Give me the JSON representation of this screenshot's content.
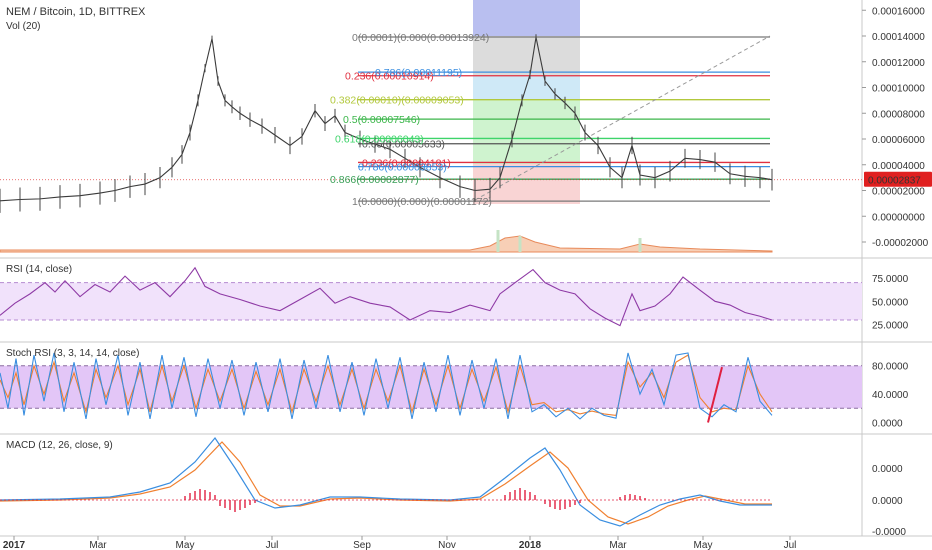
{
  "chart_data": {
    "type": "line",
    "title": "NEM / Bitcoin, 1D, BITTREX",
    "volume_label": "Vol (20)",
    "price_axis": {
      "ticks": [
        "0.00016000",
        "0.00014000",
        "0.00012000",
        "0.00010000",
        "0.00008000",
        "0.00006000",
        "0.00004000",
        "0.00002000",
        "0.00000000",
        "-0.00002000"
      ],
      "last_price": "0.00002837",
      "ylim": [
        -2e-05,
        0.00016
      ]
    },
    "x_ticks": [
      "2017",
      "Mar",
      "May",
      "Jul",
      "Sep",
      "Nov",
      "2018",
      "Mar",
      "May",
      "Jul"
    ],
    "fibonacci_levels": [
      {
        "label": "0(0.0001)(0.000(0.00013924)",
        "value": 0.00013924,
        "color": "#787878"
      },
      {
        "label": "0.236(0.00010914)",
        "value": 0.00010914,
        "color": "#e03040"
      },
      {
        "label": "0.786(0.00011195)",
        "value": 0.00011195,
        "color": "#3a8ee0"
      },
      {
        "label": "0.382(0.00010)(0.00009053)",
        "value": 9.053e-05,
        "color": "#b2c83c"
      },
      {
        "label": "0.5(0.00007546)",
        "value": 7.546e-05,
        "color": "#3bb64a"
      },
      {
        "label": "0.65(0.00005633)",
        "value": 5.633e-05,
        "color": "#555555"
      },
      {
        "label": "0.618(0.00006043)",
        "value": 6.043e-05,
        "color": "#3ed46a"
      },
      {
        "label": "0.236(0.00004181)",
        "value": 4.181e-05,
        "color": "#e03040"
      },
      {
        "label": "0.786(0.00003853)",
        "value": 3.853e-05,
        "color": "#3a8ee0"
      },
      {
        "label": "0.866(0.00002877)",
        "value": 2.877e-05,
        "color": "#3aa058"
      },
      {
        "label": "1(0.0000)(0.000)(0.00001172)",
        "value": 1.172e-05,
        "color": "#787878"
      }
    ],
    "price_series": {
      "name": "NEM/BTC",
      "points": [
        [
          0,
          1.2e-05
        ],
        [
          20,
          1.3e-05
        ],
        [
          40,
          1.35e-05
        ],
        [
          60,
          1.5e-05
        ],
        [
          80,
          1.6e-05
        ],
        [
          100,
          1.8e-05
        ],
        [
          115,
          2e-05
        ],
        [
          130,
          2.3e-05
        ],
        [
          145,
          2.5e-05
        ],
        [
          160,
          3e-05
        ],
        [
          172,
          3.8e-05
        ],
        [
          182,
          4.8e-05
        ],
        [
          190,
          6.5e-05
        ],
        [
          198,
          9e-05
        ],
        [
          205,
          0.000115
        ],
        [
          212,
          0.000138
        ],
        [
          218,
          0.000105
        ],
        [
          225,
          9e-05
        ],
        [
          232,
          8.5e-05
        ],
        [
          240,
          8e-05
        ],
        [
          250,
          7.5e-05
        ],
        [
          262,
          7e-05
        ],
        [
          275,
          6.3e-05
        ],
        [
          290,
          5.5e-05
        ],
        [
          302,
          6.2e-05
        ],
        [
          315,
          8.2e-05
        ],
        [
          325,
          7.2e-05
        ],
        [
          335,
          7.8e-05
        ],
        [
          345,
          6.5e-05
        ],
        [
          360,
          6e-05
        ],
        [
          375,
          5.6e-05
        ],
        [
          390,
          5.2e-05
        ],
        [
          405,
          4.5e-05
        ],
        [
          420,
          3.8e-05
        ],
        [
          440,
          3e-05
        ],
        [
          460,
          2.3e-05
        ],
        [
          475,
          2e-05
        ],
        [
          490,
          2.1e-05
        ],
        [
          500,
          3e-05
        ],
        [
          512,
          6e-05
        ],
        [
          522,
          9e-05
        ],
        [
          530,
          0.00011
        ],
        [
          536,
          0.000139
        ],
        [
          545,
          0.000105
        ],
        [
          555,
          9.5e-05
        ],
        [
          565,
          8.8e-05
        ],
        [
          575,
          8e-05
        ],
        [
          585,
          6.5e-05
        ],
        [
          598,
          5.5e-05
        ],
        [
          610,
          3.8e-05
        ],
        [
          622,
          3e-05
        ],
        [
          632,
          5.5e-05
        ],
        [
          640,
          3.2e-05
        ],
        [
          655,
          3e-05
        ],
        [
          670,
          3.5e-05
        ],
        [
          685,
          4.5e-05
        ],
        [
          700,
          4.4e-05
        ],
        [
          715,
          4.2e-05
        ],
        [
          730,
          3.3e-05
        ],
        [
          745,
          3.1e-05
        ],
        [
          760,
          3e-05
        ],
        [
          772,
          2.84e-05
        ]
      ]
    },
    "rsi": {
      "label": "RSI (14, close)",
      "ticks": [
        "75.0000",
        "50.0000",
        "25.0000"
      ],
      "ylim": [
        15,
        90
      ],
      "bands": [
        70,
        30
      ],
      "values": [
        [
          0,
          35
        ],
        [
          15,
          48
        ],
        [
          30,
          58
        ],
        [
          45,
          70
        ],
        [
          55,
          60
        ],
        [
          65,
          72
        ],
        [
          80,
          55
        ],
        [
          95,
          68
        ],
        [
          110,
          60
        ],
        [
          125,
          77
        ],
        [
          140,
          62
        ],
        [
          155,
          70
        ],
        [
          170,
          55
        ],
        [
          185,
          72
        ],
        [
          195,
          86
        ],
        [
          205,
          66
        ],
        [
          220,
          58
        ],
        [
          240,
          52
        ],
        [
          260,
          45
        ],
        [
          280,
          40
        ],
        [
          300,
          52
        ],
        [
          320,
          64
        ],
        [
          335,
          48
        ],
        [
          350,
          55
        ],
        [
          370,
          48
        ],
        [
          390,
          44
        ],
        [
          410,
          30
        ],
        [
          430,
          40
        ],
        [
          450,
          38
        ],
        [
          470,
          46
        ],
        [
          490,
          40
        ],
        [
          500,
          58
        ],
        [
          515,
          70
        ],
        [
          533,
          84
        ],
        [
          545,
          70
        ],
        [
          560,
          62
        ],
        [
          575,
          58
        ],
        [
          590,
          42
        ],
        [
          605,
          32
        ],
        [
          620,
          24
        ],
        [
          632,
          58
        ],
        [
          640,
          40
        ],
        [
          655,
          45
        ],
        [
          670,
          58
        ],
        [
          683,
          76
        ],
        [
          700,
          62
        ],
        [
          715,
          50
        ],
        [
          730,
          46
        ],
        [
          745,
          38
        ],
        [
          760,
          34
        ],
        [
          772,
          30
        ]
      ]
    },
    "stoch_rsi": {
      "label": "Stoch RSI (3, 3, 14, 14, close)",
      "ticks": [
        "80.0000",
        "40.0000",
        "0.0000"
      ],
      "ylim": [
        -5,
        105
      ],
      "bands": [
        80,
        20
      ],
      "k_values": [
        [
          0,
          70
        ],
        [
          8,
          20
        ],
        [
          16,
          90
        ],
        [
          24,
          10
        ],
        [
          34,
          95
        ],
        [
          44,
          30
        ],
        [
          54,
          98
        ],
        [
          64,
          15
        ],
        [
          74,
          85
        ],
        [
          86,
          5
        ],
        [
          96,
          90
        ],
        [
          106,
          25
        ],
        [
          118,
          95
        ],
        [
          128,
          10
        ],
        [
          140,
          85
        ],
        [
          150,
          5
        ],
        [
          162,
          95
        ],
        [
          172,
          20
        ],
        [
          184,
          92
        ],
        [
          196,
          8
        ],
        [
          208,
          90
        ],
        [
          220,
          20
        ],
        [
          232,
          88
        ],
        [
          244,
          10
        ],
        [
          256,
          85
        ],
        [
          268,
          15
        ],
        [
          280,
          90
        ],
        [
          292,
          5
        ],
        [
          304,
          88
        ],
        [
          316,
          20
        ],
        [
          328,
          95
        ],
        [
          340,
          15
        ],
        [
          352,
          85
        ],
        [
          364,
          10
        ],
        [
          376,
          90
        ],
        [
          388,
          20
        ],
        [
          400,
          92
        ],
        [
          412,
          5
        ],
        [
          424,
          85
        ],
        [
          436,
          15
        ],
        [
          448,
          95
        ],
        [
          460,
          10
        ],
        [
          472,
          88
        ],
        [
          484,
          20
        ],
        [
          496,
          90
        ],
        [
          508,
          5
        ],
        [
          520,
          95
        ],
        [
          532,
          15
        ],
        [
          544,
          25
        ],
        [
          556,
          8
        ],
        [
          568,
          20
        ],
        [
          580,
          5
        ],
        [
          592,
          20
        ],
        [
          604,
          10
        ],
        [
          616,
          6
        ],
        [
          628,
          98
        ],
        [
          640,
          40
        ],
        [
          652,
          75
        ],
        [
          664,
          25
        ],
        [
          676,
          95
        ],
        [
          688,
          98
        ],
        [
          700,
          20
        ],
        [
          712,
          8
        ],
        [
          724,
          25
        ],
        [
          736,
          15
        ],
        [
          748,
          92
        ],
        [
          760,
          30
        ],
        [
          772,
          10
        ]
      ],
      "d_values": [
        [
          0,
          60
        ],
        [
          8,
          35
        ],
        [
          16,
          70
        ],
        [
          24,
          25
        ],
        [
          34,
          80
        ],
        [
          44,
          40
        ],
        [
          54,
          85
        ],
        [
          64,
          30
        ],
        [
          74,
          70
        ],
        [
          86,
          15
        ],
        [
          96,
          75
        ],
        [
          106,
          35
        ],
        [
          118,
          80
        ],
        [
          128,
          25
        ],
        [
          140,
          75
        ],
        [
          150,
          15
        ],
        [
          162,
          80
        ],
        [
          172,
          30
        ],
        [
          184,
          80
        ],
        [
          196,
          20
        ],
        [
          208,
          75
        ],
        [
          220,
          30
        ],
        [
          232,
          75
        ],
        [
          244,
          20
        ],
        [
          256,
          72
        ],
        [
          268,
          25
        ],
        [
          280,
          75
        ],
        [
          292,
          15
        ],
        [
          304,
          75
        ],
        [
          316,
          30
        ],
        [
          328,
          80
        ],
        [
          340,
          25
        ],
        [
          352,
          75
        ],
        [
          364,
          20
        ],
        [
          376,
          75
        ],
        [
          388,
          30
        ],
        [
          400,
          80
        ],
        [
          412,
          15
        ],
        [
          424,
          75
        ],
        [
          436,
          25
        ],
        [
          448,
          80
        ],
        [
          460,
          20
        ],
        [
          472,
          75
        ],
        [
          484,
          30
        ],
        [
          496,
          78
        ],
        [
          508,
          15
        ],
        [
          520,
          80
        ],
        [
          532,
          25
        ],
        [
          544,
          28
        ],
        [
          556,
          15
        ],
        [
          568,
          18
        ],
        [
          580,
          12
        ],
        [
          592,
          16
        ],
        [
          604,
          12
        ],
        [
          616,
          10
        ],
        [
          628,
          85
        ],
        [
          640,
          50
        ],
        [
          652,
          70
        ],
        [
          664,
          35
        ],
        [
          676,
          85
        ],
        [
          688,
          95
        ],
        [
          700,
          35
        ],
        [
          712,
          15
        ],
        [
          724,
          20
        ],
        [
          736,
          18
        ],
        [
          748,
          80
        ],
        [
          760,
          40
        ],
        [
          772,
          15
        ]
      ]
    },
    "macd": {
      "label": "MACD (12, 26, close, 9)",
      "ticks": [
        "0.0000",
        "0.0000",
        "-0.0000"
      ]
    }
  }
}
